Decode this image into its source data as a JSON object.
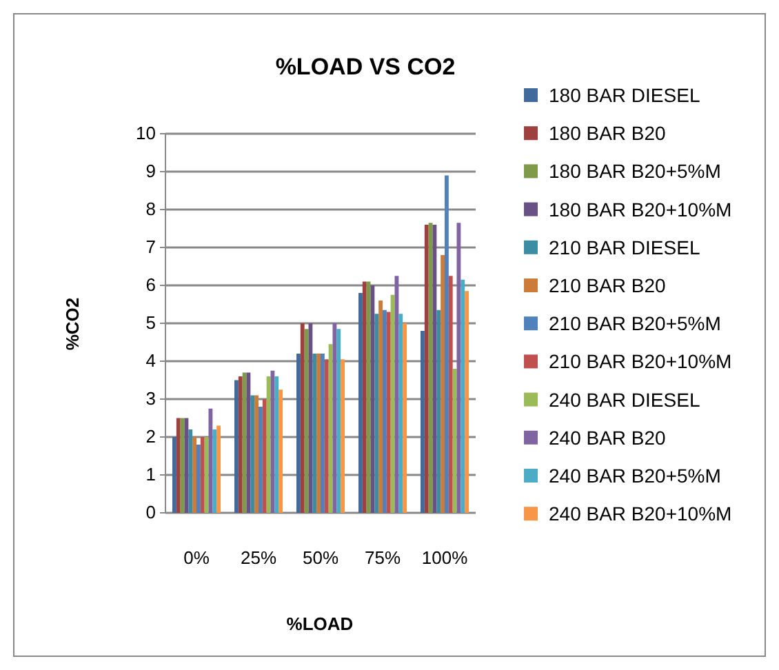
{
  "chart_data": {
    "type": "bar",
    "title": "%LOAD VS CO2",
    "xlabel": "%LOAD",
    "ylabel": "%CO2",
    "categories": [
      "0%",
      "25%",
      "50%",
      "75%",
      "100%"
    ],
    "ylim": [
      0,
      10
    ],
    "yticks": [
      0,
      1,
      2,
      3,
      4,
      5,
      6,
      7,
      8,
      9,
      10
    ],
    "grid": "y",
    "legend": "right",
    "series": [
      {
        "name": "180 BAR DIESEL",
        "color": "#40699c",
        "values": [
          2.0,
          3.5,
          4.2,
          5.8,
          4.8
        ]
      },
      {
        "name": "180 BAR B20",
        "color": "#9e413e",
        "values": [
          2.5,
          3.6,
          5.0,
          6.1,
          7.6
        ]
      },
      {
        "name": "180 BAR B20+5%M",
        "color": "#7f9a48",
        "values": [
          2.5,
          3.7,
          4.85,
          6.1,
          7.65
        ]
      },
      {
        "name": "180 BAR B20+10%M",
        "color": "#695185",
        "values": [
          2.5,
          3.7,
          5.0,
          6.0,
          7.6
        ]
      },
      {
        "name": "210 BAR DIESEL",
        "color": "#3c8da3",
        "values": [
          2.2,
          3.1,
          4.2,
          5.25,
          5.35
        ]
      },
      {
        "name": "210 BAR B20",
        "color": "#cc7b38",
        "values": [
          2.0,
          3.1,
          4.2,
          5.6,
          6.8
        ]
      },
      {
        "name": "210 BAR B20+5%M",
        "color": "#4f81bd",
        "values": [
          1.8,
          2.8,
          4.2,
          5.35,
          8.9
        ]
      },
      {
        "name": "210 BAR B20+10%M",
        "color": "#c0504d",
        "values": [
          2.0,
          3.0,
          4.05,
          5.3,
          6.25
        ]
      },
      {
        "name": "240 BAR DIESEL",
        "color": "#9bbb59",
        "values": [
          2.0,
          3.6,
          4.45,
          5.75,
          3.8
        ]
      },
      {
        "name": "240 BAR B20",
        "color": "#8064a2",
        "values": [
          2.75,
          3.75,
          5.0,
          6.25,
          7.65
        ]
      },
      {
        "name": "240 BAR B20+5%M",
        "color": "#4bacc6",
        "values": [
          2.2,
          3.6,
          4.85,
          5.25,
          6.15
        ]
      },
      {
        "name": "240 BAR B20+10%M",
        "color": "#f79646",
        "values": [
          2.3,
          3.25,
          4.05,
          5.0,
          5.85
        ]
      }
    ]
  }
}
